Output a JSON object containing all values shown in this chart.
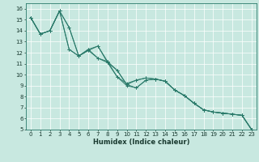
{
  "title": "",
  "xlabel": "Humidex (Indice chaleur)",
  "ylabel": "",
  "xlim": [
    -0.5,
    23.5
  ],
  "ylim": [
    5,
    16.5
  ],
  "xticks": [
    0,
    1,
    2,
    3,
    4,
    5,
    6,
    7,
    8,
    9,
    10,
    11,
    12,
    13,
    14,
    15,
    16,
    17,
    18,
    19,
    20,
    21,
    22,
    23
  ],
  "yticks": [
    5,
    6,
    7,
    8,
    9,
    10,
    11,
    12,
    13,
    14,
    15,
    16
  ],
  "bg_color": "#c8e8e0",
  "grid_color": "#ffffff",
  "line_color": "#2a7a6a",
  "series": [
    [
      15.2,
      13.7,
      14.0,
      15.8,
      14.3,
      11.7,
      12.3,
      12.6,
      11.1,
      9.8,
      9.0,
      8.8,
      9.5,
      9.6,
      9.4,
      8.6,
      8.1,
      7.4,
      6.8,
      6.6,
      6.5,
      6.4,
      6.3,
      5.0
    ],
    [
      15.2,
      13.7,
      14.0,
      15.8,
      12.3,
      11.7,
      12.2,
      11.5,
      11.2,
      10.4,
      9.1,
      9.5,
      9.7,
      9.6,
      9.4,
      8.6,
      8.1,
      7.4,
      6.8,
      6.6,
      6.5,
      6.4,
      6.3,
      5.0
    ],
    [
      15.2,
      13.7,
      14.0,
      15.8,
      12.3,
      11.7,
      12.2,
      12.6,
      11.2,
      9.8,
      9.2,
      9.5,
      9.7,
      9.6,
      9.4,
      8.6,
      8.1,
      7.4,
      6.8,
      6.6,
      6.5,
      6.4,
      6.3,
      5.0
    ],
    [
      15.2,
      13.7,
      14.0,
      15.8,
      14.3,
      11.7,
      12.3,
      11.5,
      11.1,
      10.4,
      9.1,
      8.8,
      9.5,
      9.6,
      9.4,
      8.6,
      8.1,
      7.4,
      6.8,
      6.6,
      6.5,
      6.4,
      6.3,
      5.0
    ]
  ],
  "tick_fontsize": 5.0,
  "xlabel_fontsize": 6.0,
  "linewidth": 0.7,
  "markersize": 3.0,
  "markeredgewidth": 0.7
}
